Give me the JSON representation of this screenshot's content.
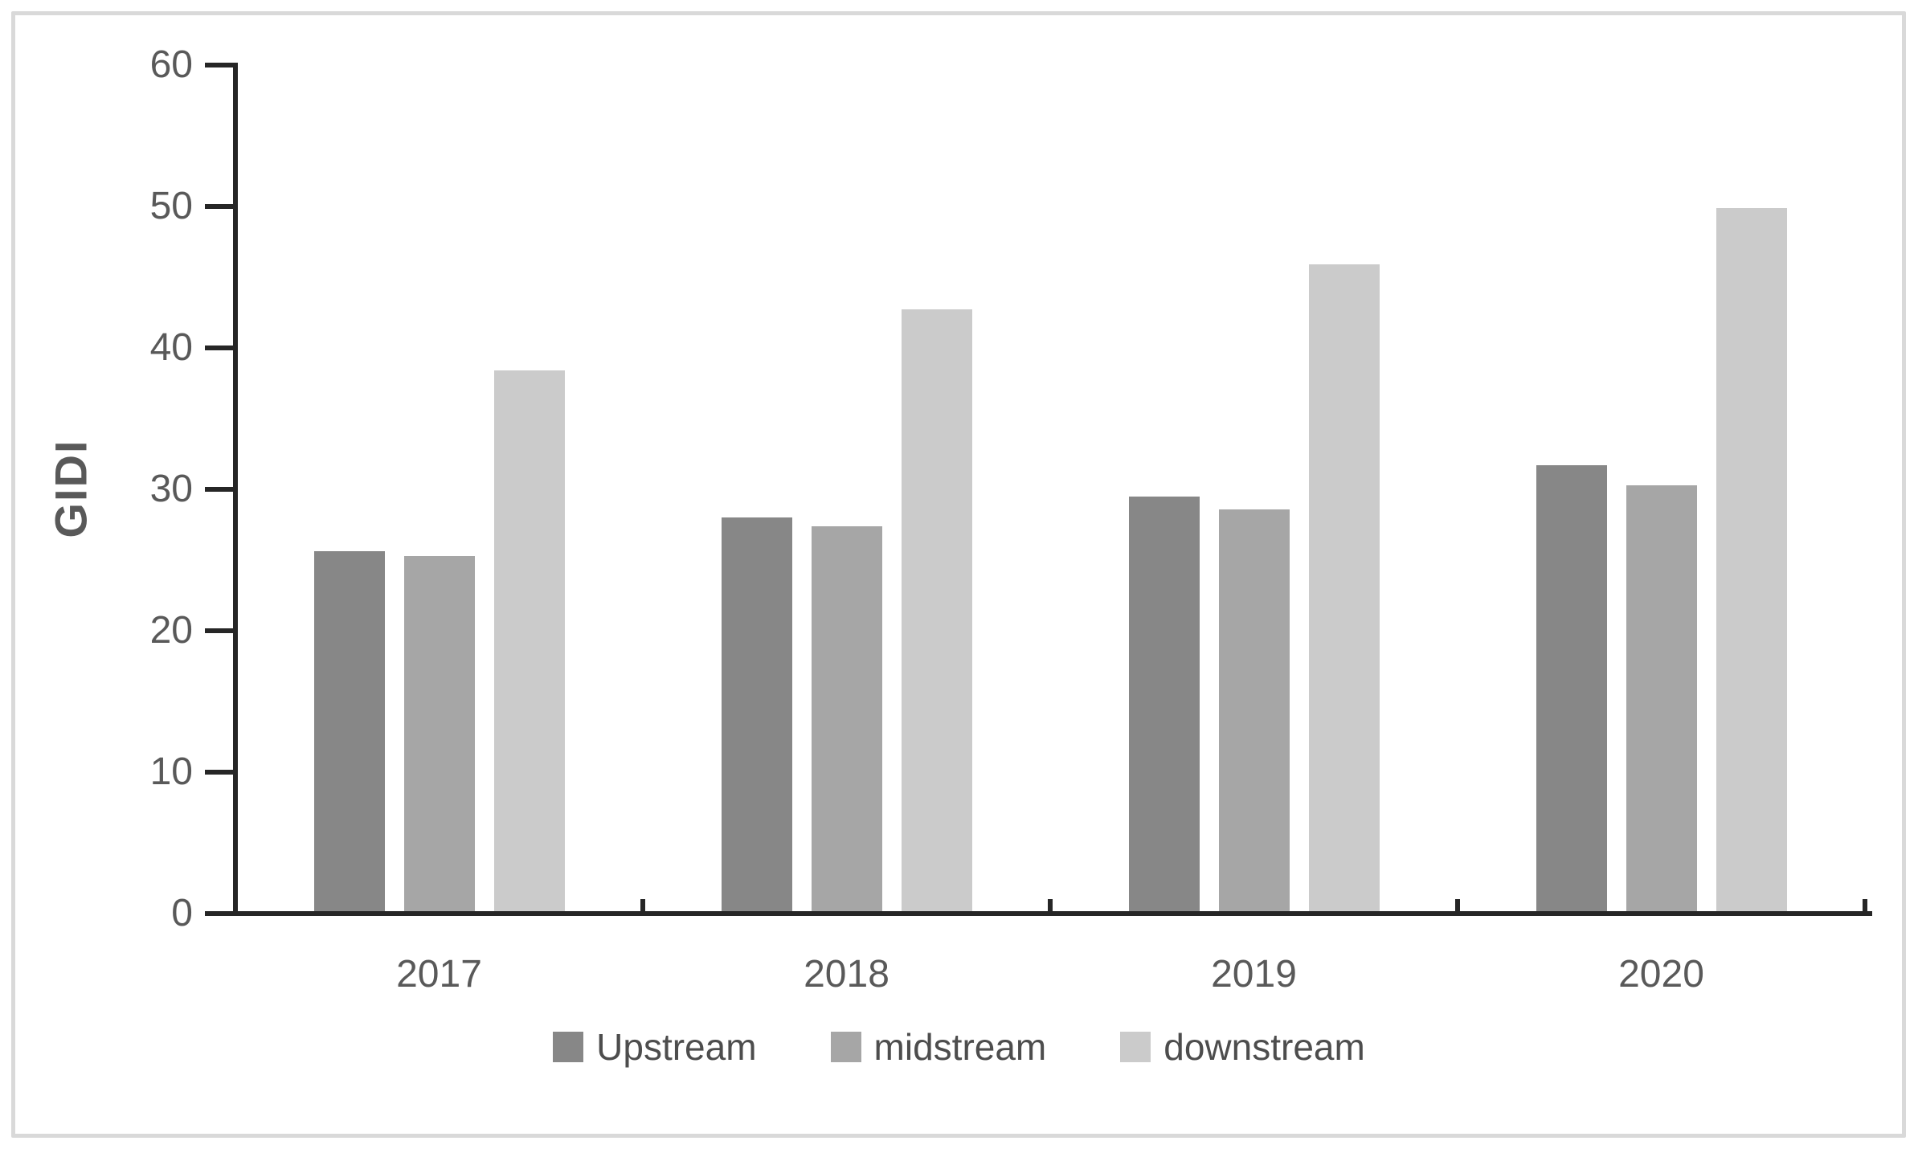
{
  "chart_data": {
    "type": "bar",
    "title": "",
    "ylabel": "GIDI",
    "xlabel": "",
    "categories": [
      "2017",
      "2018",
      "2019",
      "2020"
    ],
    "series": [
      {
        "name": "Upstream",
        "color": "#878787",
        "values": [
          25.6,
          28.0,
          29.5,
          31.7
        ]
      },
      {
        "name": "midstream",
        "color": "#a6a6a6",
        "values": [
          25.3,
          27.4,
          28.6,
          30.3
        ]
      },
      {
        "name": "downstream",
        "color": "#cbcbcb",
        "values": [
          38.4,
          42.7,
          45.9,
          49.9
        ]
      }
    ],
    "ylim": [
      0,
      60
    ],
    "yticks": [
      0,
      10,
      20,
      30,
      40,
      50,
      60
    ],
    "grid": false,
    "legend_position": "bottom"
  },
  "theme": {
    "background": "#ffffff",
    "frame_border": "#d9d9d9",
    "axis_line": "#262626",
    "tick_label_color": "#595959",
    "axis_title_color": "#595959",
    "legend_text_color": "#4d4d4d"
  }
}
